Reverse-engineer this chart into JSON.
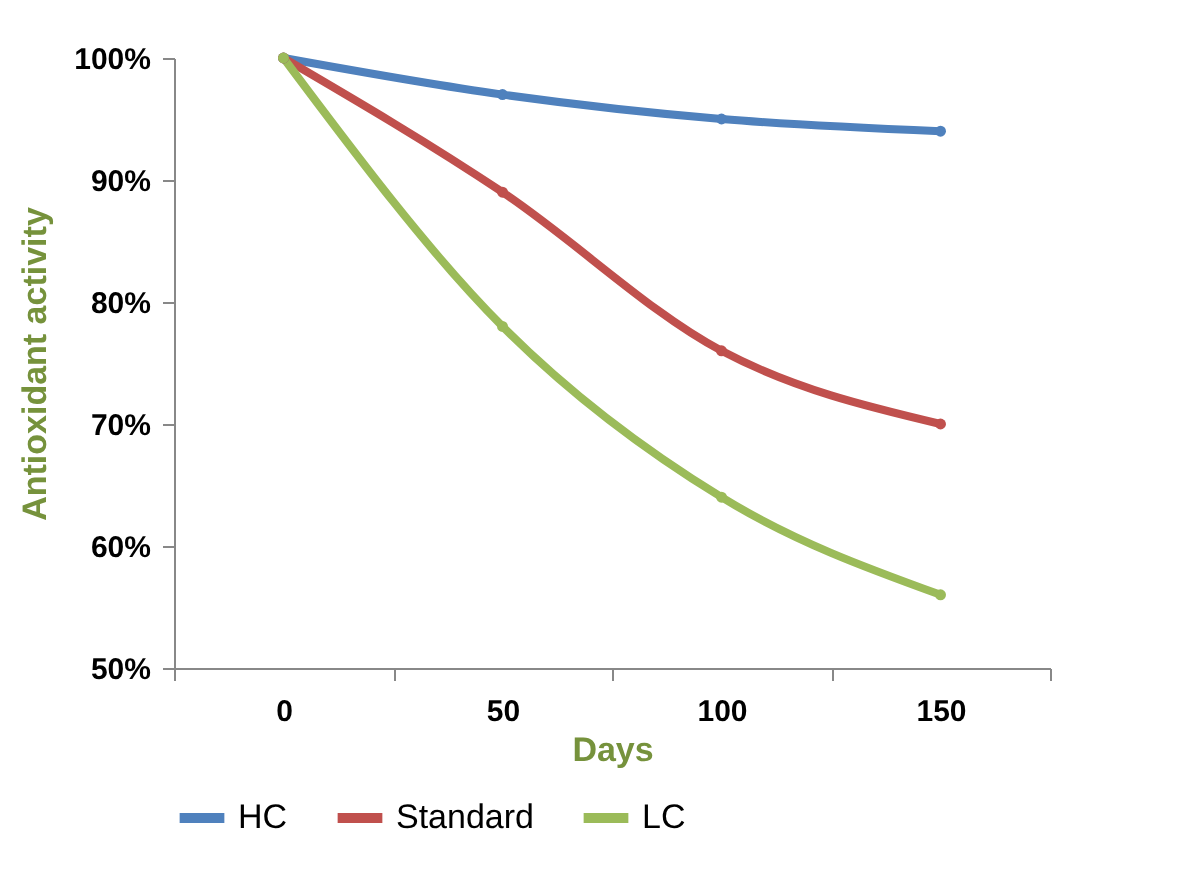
{
  "chart_data": {
    "type": "line",
    "xlabel": "Days",
    "ylabel": "Antioxidant activity",
    "categories": [
      "0",
      "50",
      "100",
      "150"
    ],
    "series": [
      {
        "name": "HC",
        "color": "#4f81bd",
        "values": [
          100,
          97,
          95,
          94
        ]
      },
      {
        "name": "Standard",
        "color": "#c0504d",
        "values": [
          100,
          89,
          76,
          70
        ]
      },
      {
        "name": "LC",
        "color": "#9bbb59",
        "values": [
          100,
          78,
          64,
          56
        ]
      }
    ],
    "ylim": [
      50,
      100
    ],
    "yticks": [
      {
        "value": 50,
        "label": "50%"
      },
      {
        "value": 60,
        "label": "60%"
      },
      {
        "value": 70,
        "label": "70%"
      },
      {
        "value": 80,
        "label": "80%"
      },
      {
        "value": 90,
        "label": "90%"
      },
      {
        "value": 100,
        "label": "100%"
      }
    ],
    "grid": false,
    "legend": "bottom",
    "marker": "circle",
    "line_style": "solid"
  }
}
